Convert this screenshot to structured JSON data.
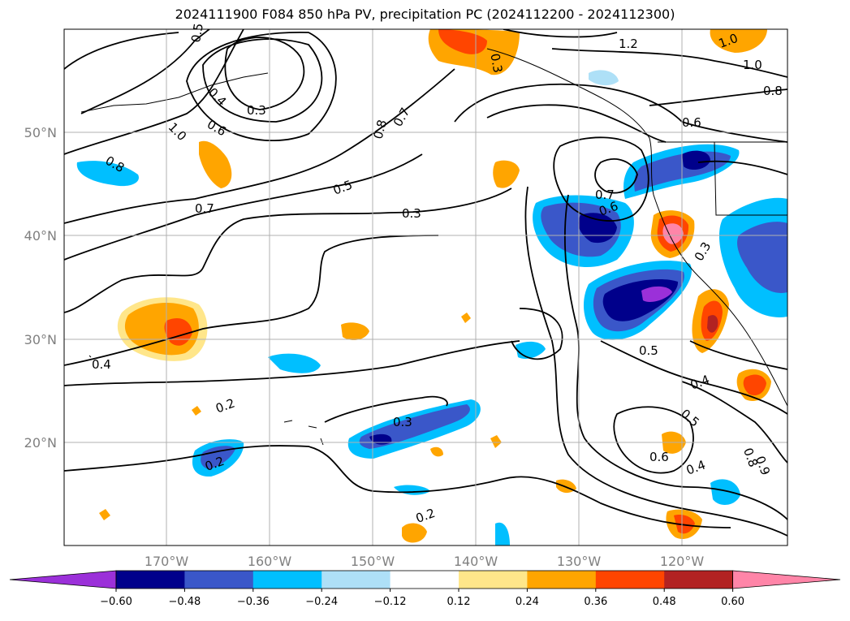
{
  "title": "2024111900 F084 850 hPa PV, precipitation PC (2024112200 - 2024112300)",
  "lat_labels": [
    "50°N",
    "40°N",
    "30°N",
    "20°N"
  ],
  "lon_labels": [
    "170°W",
    "160°W",
    "150°W",
    "140°W",
    "130°W",
    "120°W"
  ],
  "contour_labels": [
    "0.5",
    "0.4",
    "0.3",
    "0.6",
    "1.0",
    "0.8",
    "0.7",
    "0.5",
    "0.3",
    "0.8",
    "0.7",
    "0.3",
    "1.2",
    "1.0",
    "1.0",
    "0.8",
    "0.6",
    "0.7",
    "0.6",
    "0.3",
    "0.5",
    "0.4",
    "0.4",
    "0.2",
    "0.2",
    "0.3",
    "0.2",
    "0.5",
    "0.6",
    "0.4",
    "0.8",
    "0.9"
  ],
  "colorbar": {
    "ticks": [
      "−0.60",
      "−0.48",
      "−0.36",
      "−0.24",
      "−0.12",
      "0.12",
      "0.24",
      "0.36",
      "0.48",
      "0.60"
    ],
    "colors": [
      "#9b30d9",
      "#00008b",
      "#3a57c9",
      "#00bfff",
      "#aee0f7",
      "#ffffff",
      "#ffe68a",
      "#ffa500",
      "#ff4500",
      "#b22222",
      "#ff85a8"
    ]
  },
  "colors": {
    "neg_strong": "#00008b",
    "neg_mid": "#3a57c9",
    "neg_light": "#00bfff",
    "neg_pale": "#aee0f7",
    "pos_pale": "#ffe68a",
    "pos_light": "#ffa500",
    "pos_mid": "#ff4500",
    "pos_strong": "#b22222",
    "pos_max": "#ff85a8"
  }
}
